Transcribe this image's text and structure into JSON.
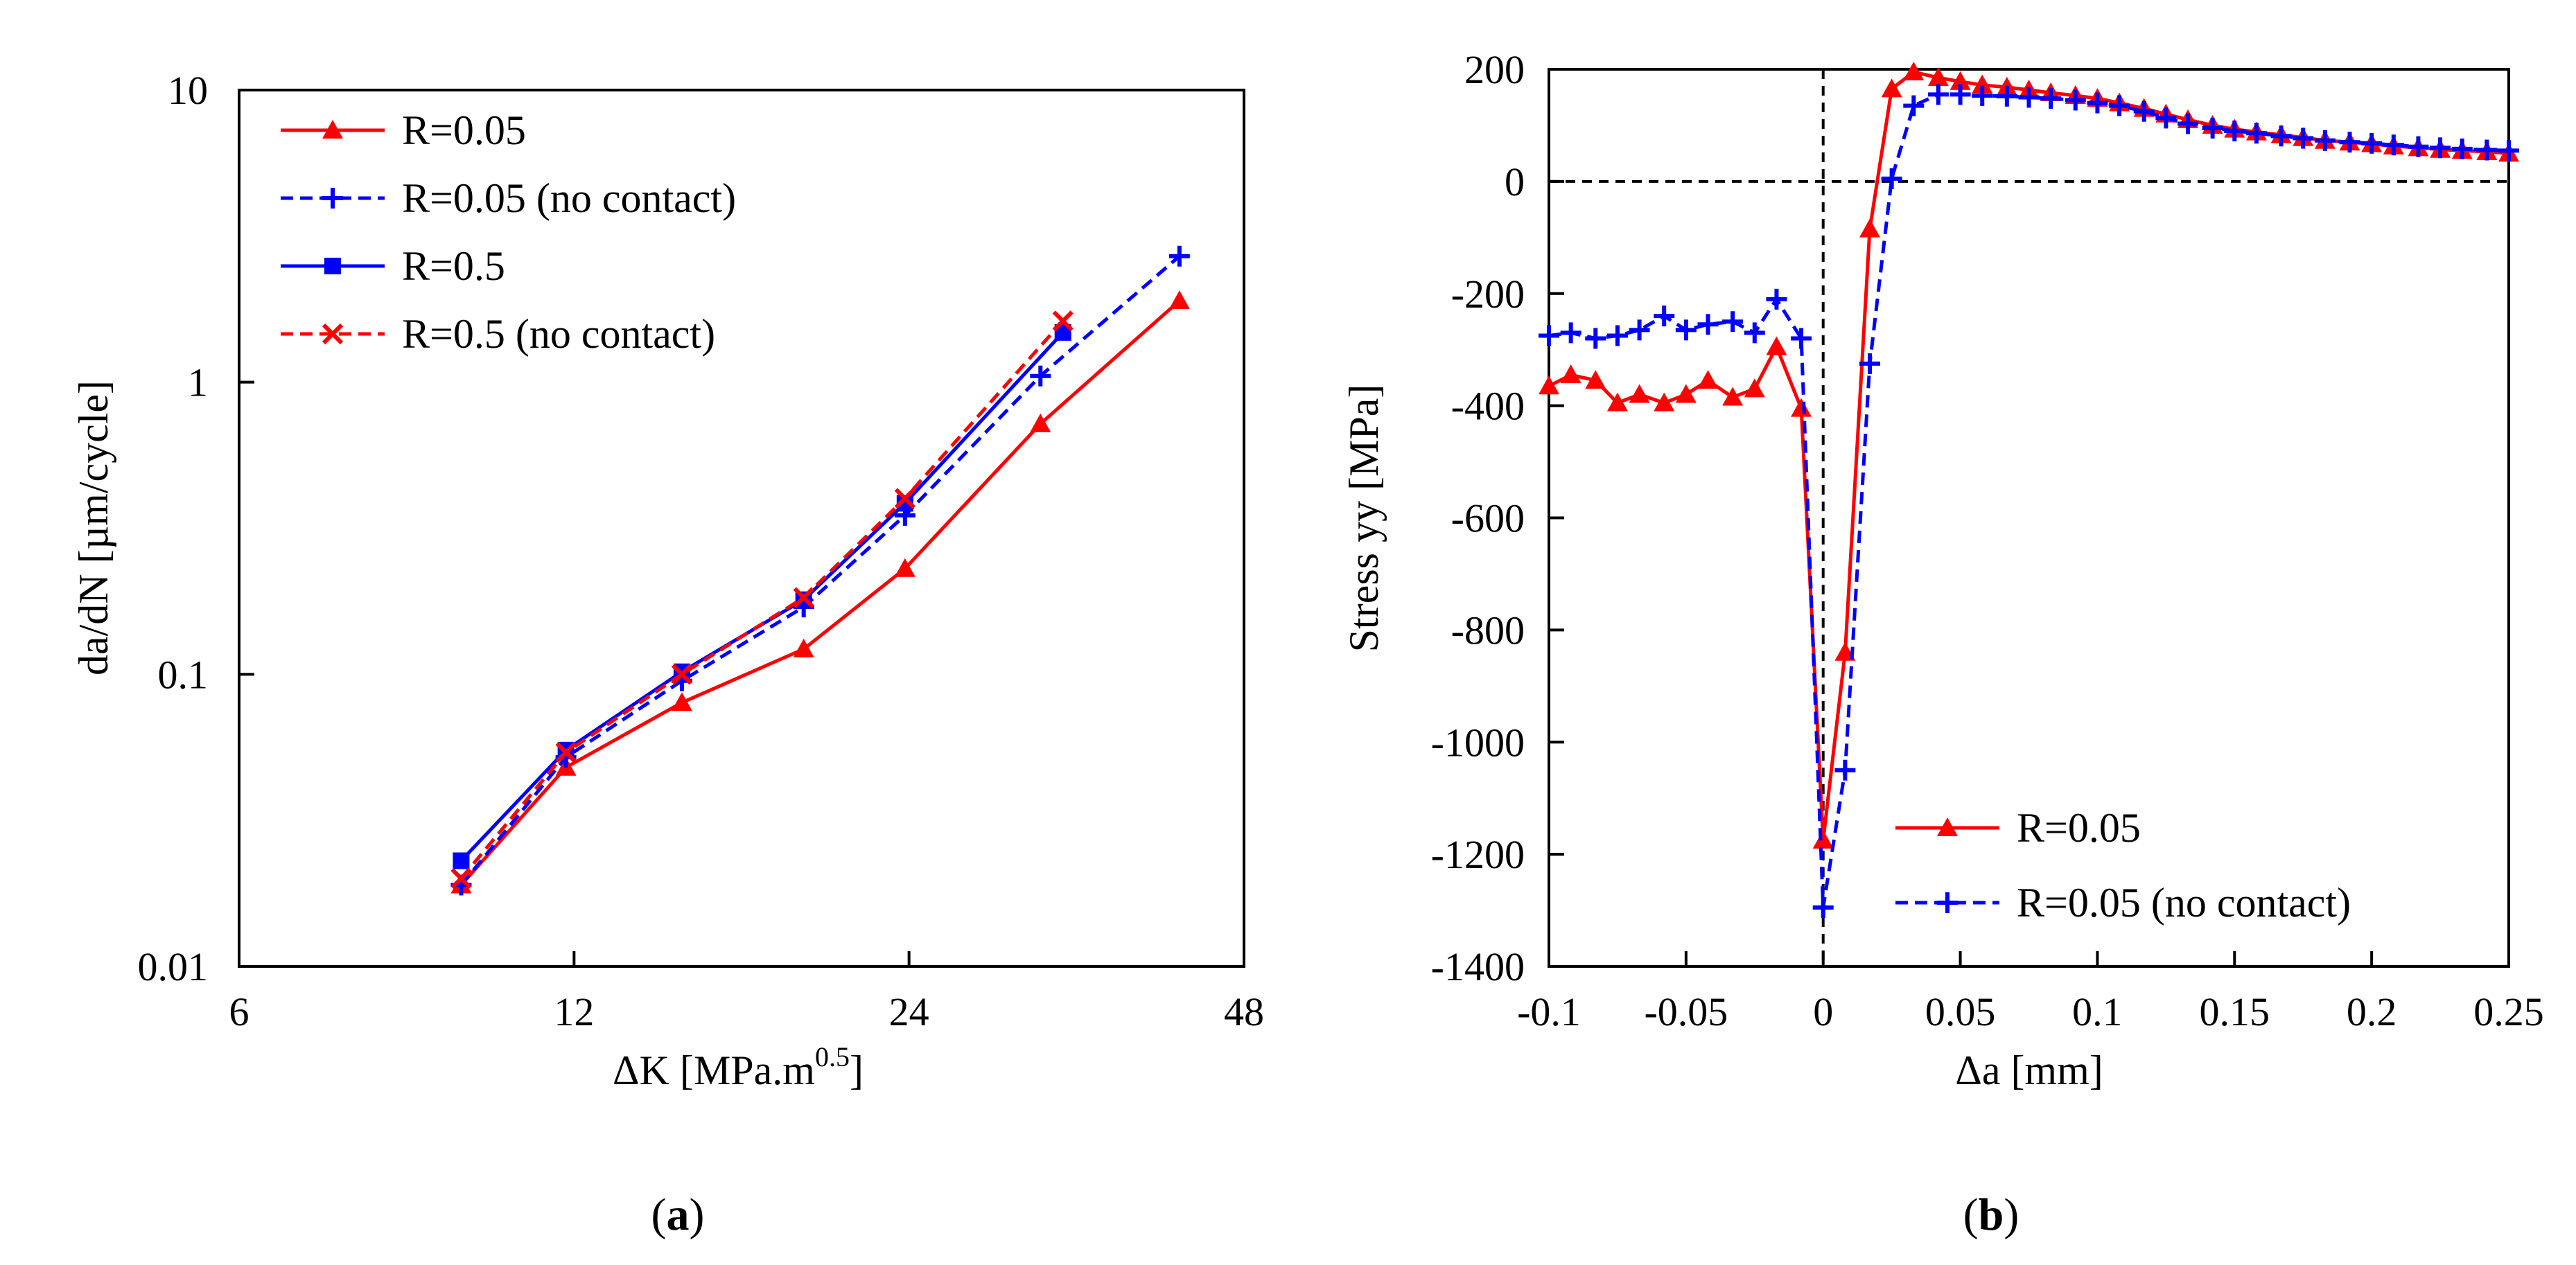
{
  "colors": {
    "red": "#ff0000",
    "blue": "#0000ff",
    "axis": "#000000"
  },
  "chart_data": [
    {
      "panel_label": "(a)",
      "panel_letter": "a",
      "type": "line",
      "xscale": "log2",
      "yscale": "log10",
      "xlim": [
        6,
        48
      ],
      "ylim": [
        0.01,
        10
      ],
      "xticks": [
        6,
        12,
        24,
        48
      ],
      "yticks": [
        0.01,
        0.1,
        1,
        10
      ],
      "ytick_labels": [
        "0.01",
        "0.1",
        "1",
        "10"
      ],
      "xlabel": "ΔK [MPa.m",
      "xlabel_sup": "0.5",
      "xlabel_tail": "]",
      "ylabel": "da/dN [µm/cycle]",
      "grid": false,
      "legend_position": "top-left",
      "series": [
        {
          "name": "R=0.05",
          "color": "#ff0000",
          "dash": "solid",
          "marker": "triangle",
          "x": [
            9.5,
            11.8,
            15.0,
            19.3,
            23.8,
            31.5,
            42.0
          ],
          "y": [
            0.019,
            0.048,
            0.08,
            0.122,
            0.23,
            0.72,
            1.9
          ]
        },
        {
          "name": "R=0.05 (no contact)",
          "color": "#0000ff",
          "dash": "dashed",
          "marker": "plus",
          "x": [
            9.5,
            11.8,
            15.0,
            19.3,
            23.8,
            31.5,
            42.0
          ],
          "y": [
            0.019,
            0.052,
            0.095,
            0.17,
            0.35,
            1.05,
            2.7
          ]
        },
        {
          "name": "R=0.5",
          "color": "#0000ff",
          "dash": "solid",
          "marker": "square",
          "x": [
            9.5,
            11.8,
            15.0,
            19.3,
            23.8,
            33.0
          ],
          "y": [
            0.023,
            0.055,
            0.102,
            0.18,
            0.385,
            1.48
          ]
        },
        {
          "name": "R=0.5 (no contact)",
          "color": "#ff0000",
          "dash": "dashed",
          "marker": "x",
          "x": [
            9.5,
            11.8,
            15.0,
            19.3,
            23.8,
            33.0
          ],
          "y": [
            0.02,
            0.054,
            0.1,
            0.183,
            0.4,
            1.62
          ]
        }
      ]
    },
    {
      "panel_label": "(b)",
      "panel_letter": "b",
      "type": "line",
      "xlim": [
        -0.1,
        0.25
      ],
      "ylim": [
        -1400,
        200
      ],
      "xticks": [
        -0.1,
        -0.05,
        0,
        0.05,
        0.1,
        0.15,
        0.2,
        0.25
      ],
      "xtick_labels": [
        "-0.1",
        "-0.05",
        "0",
        "0.05",
        "0.1",
        "0.15",
        "0.2",
        "0.25"
      ],
      "yticks": [
        -1400,
        -1200,
        -1000,
        -800,
        -600,
        -400,
        -200,
        0,
        200
      ],
      "ytick_labels": [
        "-1400",
        "-1200",
        "-1000",
        "-800",
        "-600",
        "-400",
        "-200",
        "0",
        "200"
      ],
      "xlabel": "Δa [mm]",
      "ylabel": "Stress yy [MPa]",
      "grid": false,
      "reference_lines": [
        "x = 0 (dashed)",
        "y = 0 (dashed)"
      ],
      "legend_position": "bottom-right",
      "series": [
        {
          "name": "R=0.05",
          "color": "#ff0000",
          "dash": "solid",
          "marker": "triangle",
          "x": [
            -0.1,
            -0.092,
            -0.083,
            -0.075,
            -0.067,
            -0.058,
            -0.05,
            -0.042,
            -0.033,
            -0.025,
            -0.017,
            -0.008,
            0.0,
            0.008,
            0.017,
            0.025,
            0.033,
            0.042,
            0.05,
            0.058,
            0.067,
            0.075,
            0.083,
            0.092,
            0.1,
            0.108,
            0.117,
            0.125,
            0.133,
            0.142,
            0.15,
            0.158,
            0.167,
            0.175,
            0.183,
            0.192,
            0.2,
            0.208,
            0.217,
            0.225,
            0.233,
            0.242,
            0.25
          ],
          "y": [
            -365,
            -345,
            -355,
            -395,
            -380,
            -395,
            -380,
            -355,
            -385,
            -370,
            -295,
            -405,
            -1175,
            -840,
            -85,
            165,
            195,
            185,
            178,
            172,
            168,
            163,
            158,
            153,
            148,
            140,
            130,
            120,
            110,
            100,
            93,
            88,
            83,
            78,
            73,
            70,
            67,
            63,
            60,
            57,
            55,
            53,
            50
          ]
        },
        {
          "name": "R=0.05 (no contact)",
          "color": "#0000ff",
          "dash": "dashed",
          "marker": "plus",
          "x": [
            -0.1,
            -0.092,
            -0.083,
            -0.075,
            -0.067,
            -0.058,
            -0.05,
            -0.042,
            -0.033,
            -0.025,
            -0.017,
            -0.008,
            0.0,
            0.008,
            0.017,
            0.025,
            0.033,
            0.042,
            0.05,
            0.058,
            0.067,
            0.075,
            0.083,
            0.092,
            0.1,
            0.108,
            0.117,
            0.125,
            0.133,
            0.142,
            0.15,
            0.158,
            0.167,
            0.175,
            0.183,
            0.192,
            0.2,
            0.208,
            0.217,
            0.225,
            0.233,
            0.242,
            0.25
          ],
          "y": [
            -275,
            -270,
            -280,
            -275,
            -265,
            -240,
            -265,
            -255,
            -250,
            -270,
            -210,
            -280,
            -1295,
            -1050,
            -325,
            5,
            135,
            155,
            155,
            153,
            152,
            150,
            148,
            145,
            140,
            135,
            125,
            113,
            103,
            95,
            90,
            86,
            81,
            77,
            73,
            70,
            68,
            65,
            62,
            60,
            58,
            56,
            55
          ]
        }
      ]
    }
  ]
}
